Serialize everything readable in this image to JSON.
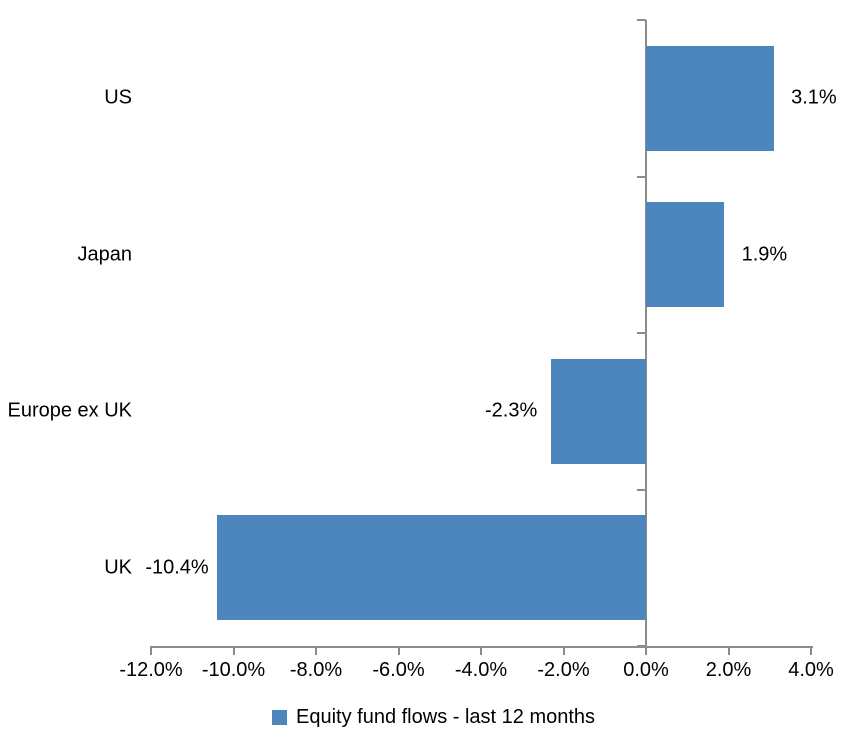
{
  "chart_data": {
    "type": "bar",
    "orientation": "horizontal",
    "title": "",
    "categories": [
      "US",
      "Japan",
      "Europe ex UK",
      "UK"
    ],
    "series": [
      {
        "name": "Equity fund flows - last 12 months",
        "values": [
          3.1,
          1.9,
          -2.3,
          -10.4
        ],
        "data_labels": [
          "3.1%",
          "1.9%",
          "-2.3%",
          "-10.4%"
        ]
      }
    ],
    "xlim": [
      -12,
      4
    ],
    "x_ticks": [
      -12,
      -10,
      -8,
      -6,
      -4,
      -2,
      0,
      2,
      4
    ],
    "x_tick_labels": [
      "-12.0%",
      "-10.0%",
      "-8.0%",
      "-6.0%",
      "-4.0%",
      "-2.0%",
      "0.0%",
      "2.0%",
      "4.0%"
    ],
    "grid": false,
    "legend_position": "bottom"
  },
  "legend": {
    "label": "Equity fund flows - last 12 months"
  },
  "colors": {
    "bar": "#4C86BC",
    "axis": "#8C8C8C",
    "text": "#000000"
  }
}
